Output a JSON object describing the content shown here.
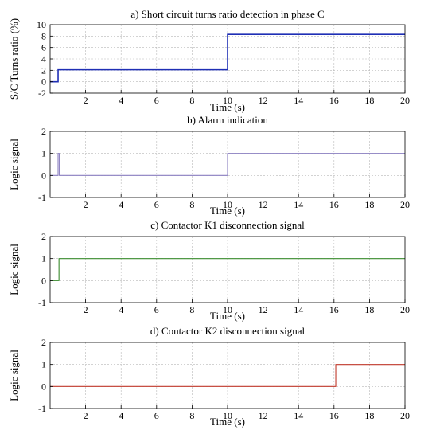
{
  "chart_data": [
    {
      "type": "line",
      "title": "a) Short circuit turns ratio detection in phase C",
      "xlabel": "Time (s)",
      "ylabel": "S/C Turns ratio (%)",
      "xlim": [
        0,
        20
      ],
      "ylim": [
        -2,
        10
      ],
      "xticks": [
        2,
        4,
        6,
        8,
        10,
        12,
        14,
        16,
        18,
        20
      ],
      "yticks": [
        -2,
        0,
        2,
        4,
        6,
        8,
        10
      ],
      "grid": true,
      "series": [
        {
          "color": "#1f2fb5",
          "x": [
            0,
            0.45,
            0.45,
            10,
            10,
            20
          ],
          "y": [
            0,
            0,
            2.1,
            2.1,
            8.3,
            8.3
          ]
        }
      ]
    },
    {
      "type": "line",
      "title": "b) Alarm indication",
      "xlabel": "Time (s)",
      "ylabel": "Logic signal",
      "xlim": [
        0,
        20
      ],
      "ylim": [
        -1,
        2
      ],
      "xticks": [
        2,
        4,
        6,
        8,
        10,
        12,
        14,
        16,
        18,
        20
      ],
      "yticks": [
        -1,
        0,
        1,
        2
      ],
      "grid": true,
      "series": [
        {
          "color": "#8a7fc0",
          "x": [
            0,
            0.45,
            0.45,
            0.52,
            0.52,
            10,
            10,
            20
          ],
          "y": [
            0,
            0,
            1,
            1,
            0,
            0,
            1,
            1
          ]
        }
      ]
    },
    {
      "type": "line",
      "title": "c) Contactor K1 disconnection signal",
      "xlabel": "Time (s)",
      "ylabel": "Logic signal",
      "xlim": [
        0,
        20
      ],
      "ylim": [
        -1,
        2
      ],
      "xticks": [
        2,
        4,
        6,
        8,
        10,
        12,
        14,
        16,
        18,
        20
      ],
      "yticks": [
        -1,
        0,
        1,
        2
      ],
      "grid": true,
      "series": [
        {
          "color": "#3a8c2e",
          "x": [
            0,
            0.5,
            0.5,
            20
          ],
          "y": [
            0,
            0,
            1,
            1
          ]
        }
      ]
    },
    {
      "type": "line",
      "title": "d) Contactor K2 disconnection signal",
      "xlabel": "Time (s)",
      "ylabel": "Logic signal",
      "xlim": [
        0,
        20
      ],
      "ylim": [
        -1,
        2
      ],
      "xticks": [
        2,
        4,
        6,
        8,
        10,
        12,
        14,
        16,
        18,
        20
      ],
      "yticks": [
        -1,
        0,
        1,
        2
      ],
      "grid": true,
      "series": [
        {
          "color": "#c0392b",
          "x": [
            0,
            16.1,
            16.1,
            20
          ],
          "y": [
            0,
            0,
            1,
            1
          ]
        }
      ]
    }
  ]
}
